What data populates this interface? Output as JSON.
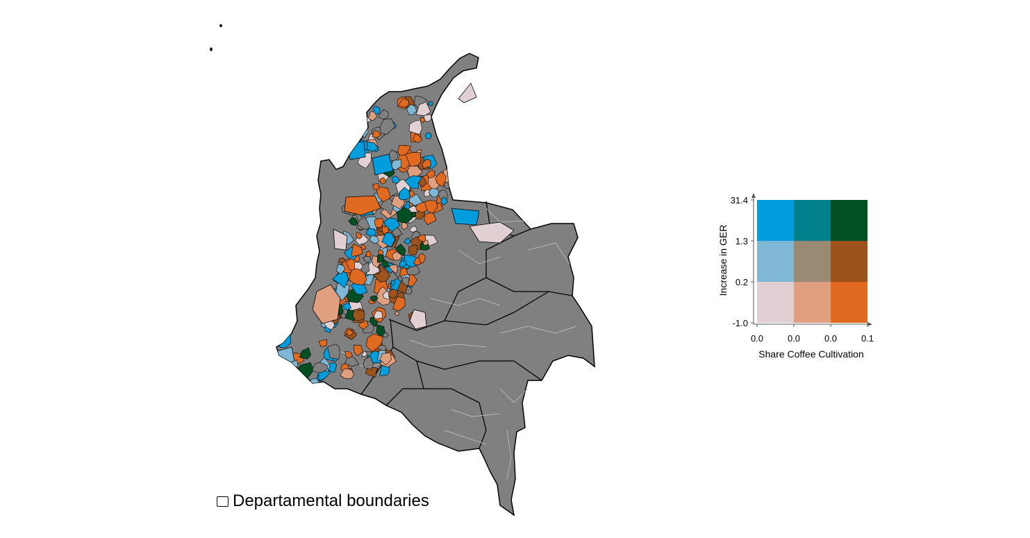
{
  "legend": {
    "boundaries_label": "Departamental boundaries"
  },
  "bivariate_legend": {
    "y_axis_title": "Increase in GER",
    "x_axis_title": "Share Coffee Cultivation",
    "y_ticks": [
      "31.4",
      "1.3",
      "0.2",
      "-1.0"
    ],
    "x_ticks": [
      "0.0",
      "0.0",
      "0.0",
      "0.1"
    ],
    "grid_colors": [
      [
        "#019ddc",
        "#027f8c",
        "#024f24"
      ],
      [
        "#80b7d4",
        "#9a8a73",
        "#9d541c"
      ],
      [
        "#e0d0d3",
        "#e0a07f",
        "#e06a1f"
      ]
    ]
  },
  "colors": {
    "base_region": "#808080",
    "department_border": "#000000",
    "municipal_border": "#b5b5b5"
  }
}
